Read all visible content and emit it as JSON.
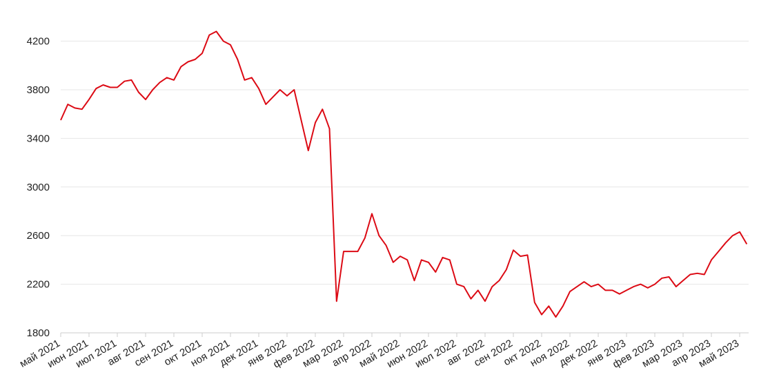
{
  "chart_data": {
    "type": "line",
    "categories": [
      "май 2021",
      null,
      null,
      null,
      "июн 2021",
      null,
      null,
      null,
      "июл 2021",
      null,
      null,
      null,
      "авг 2021",
      null,
      null,
      null,
      "сен 2021",
      null,
      null,
      null,
      "окт 2021",
      null,
      null,
      null,
      "ноя 2021",
      null,
      null,
      null,
      "дек 2021",
      null,
      null,
      null,
      "янв 2022",
      null,
      null,
      null,
      "фев 2022",
      null,
      null,
      null,
      "мар 2022",
      null,
      null,
      null,
      "апр 2022",
      null,
      null,
      null,
      "май 2022",
      null,
      null,
      null,
      "июн 2022",
      null,
      null,
      null,
      "июл 2022",
      null,
      null,
      null,
      "авг 2022",
      null,
      null,
      null,
      "сен 2022",
      null,
      null,
      null,
      "окт 2022",
      null,
      null,
      null,
      "ноя 2022",
      null,
      null,
      null,
      "дек 2022",
      null,
      null,
      null,
      "янв 2023",
      null,
      null,
      null,
      "фев 2023",
      null,
      null,
      null,
      "мар 2023",
      null,
      null,
      null,
      "апр 2023",
      null,
      null,
      null,
      "май 2023",
      null
    ],
    "values": [
      3550,
      3680,
      3650,
      3640,
      3720,
      3810,
      3840,
      3820,
      3820,
      3870,
      3880,
      3780,
      3720,
      3800,
      3860,
      3900,
      3880,
      3990,
      4030,
      4050,
      4100,
      4250,
      4280,
      4200,
      4170,
      4050,
      3880,
      3900,
      3810,
      3680,
      3740,
      3800,
      3750,
      3800,
      3550,
      3300,
      3530,
      3640,
      3480,
      2060,
      2470,
      2470,
      2470,
      2580,
      2780,
      2600,
      2520,
      2380,
      2430,
      2400,
      2230,
      2400,
      2380,
      2300,
      2420,
      2400,
      2200,
      2180,
      2080,
      2150,
      2060,
      2180,
      2230,
      2320,
      2480,
      2430,
      2440,
      2050,
      1950,
      2020,
      1930,
      2020,
      2140,
      2180,
      2220,
      2180,
      2200,
      2150,
      2150,
      2120,
      2150,
      2180,
      2200,
      2170,
      2200,
      2250,
      2260,
      2180,
      2230,
      2280,
      2290,
      2280,
      2400,
      2470,
      2540,
      2600,
      2630,
      2530
    ],
    "color": "#dc0a14",
    "ylim": [
      1800,
      4300
    ],
    "yticks": [
      1800,
      2200,
      2600,
      3000,
      3400,
      3800,
      4200
    ],
    "grid": true
  }
}
